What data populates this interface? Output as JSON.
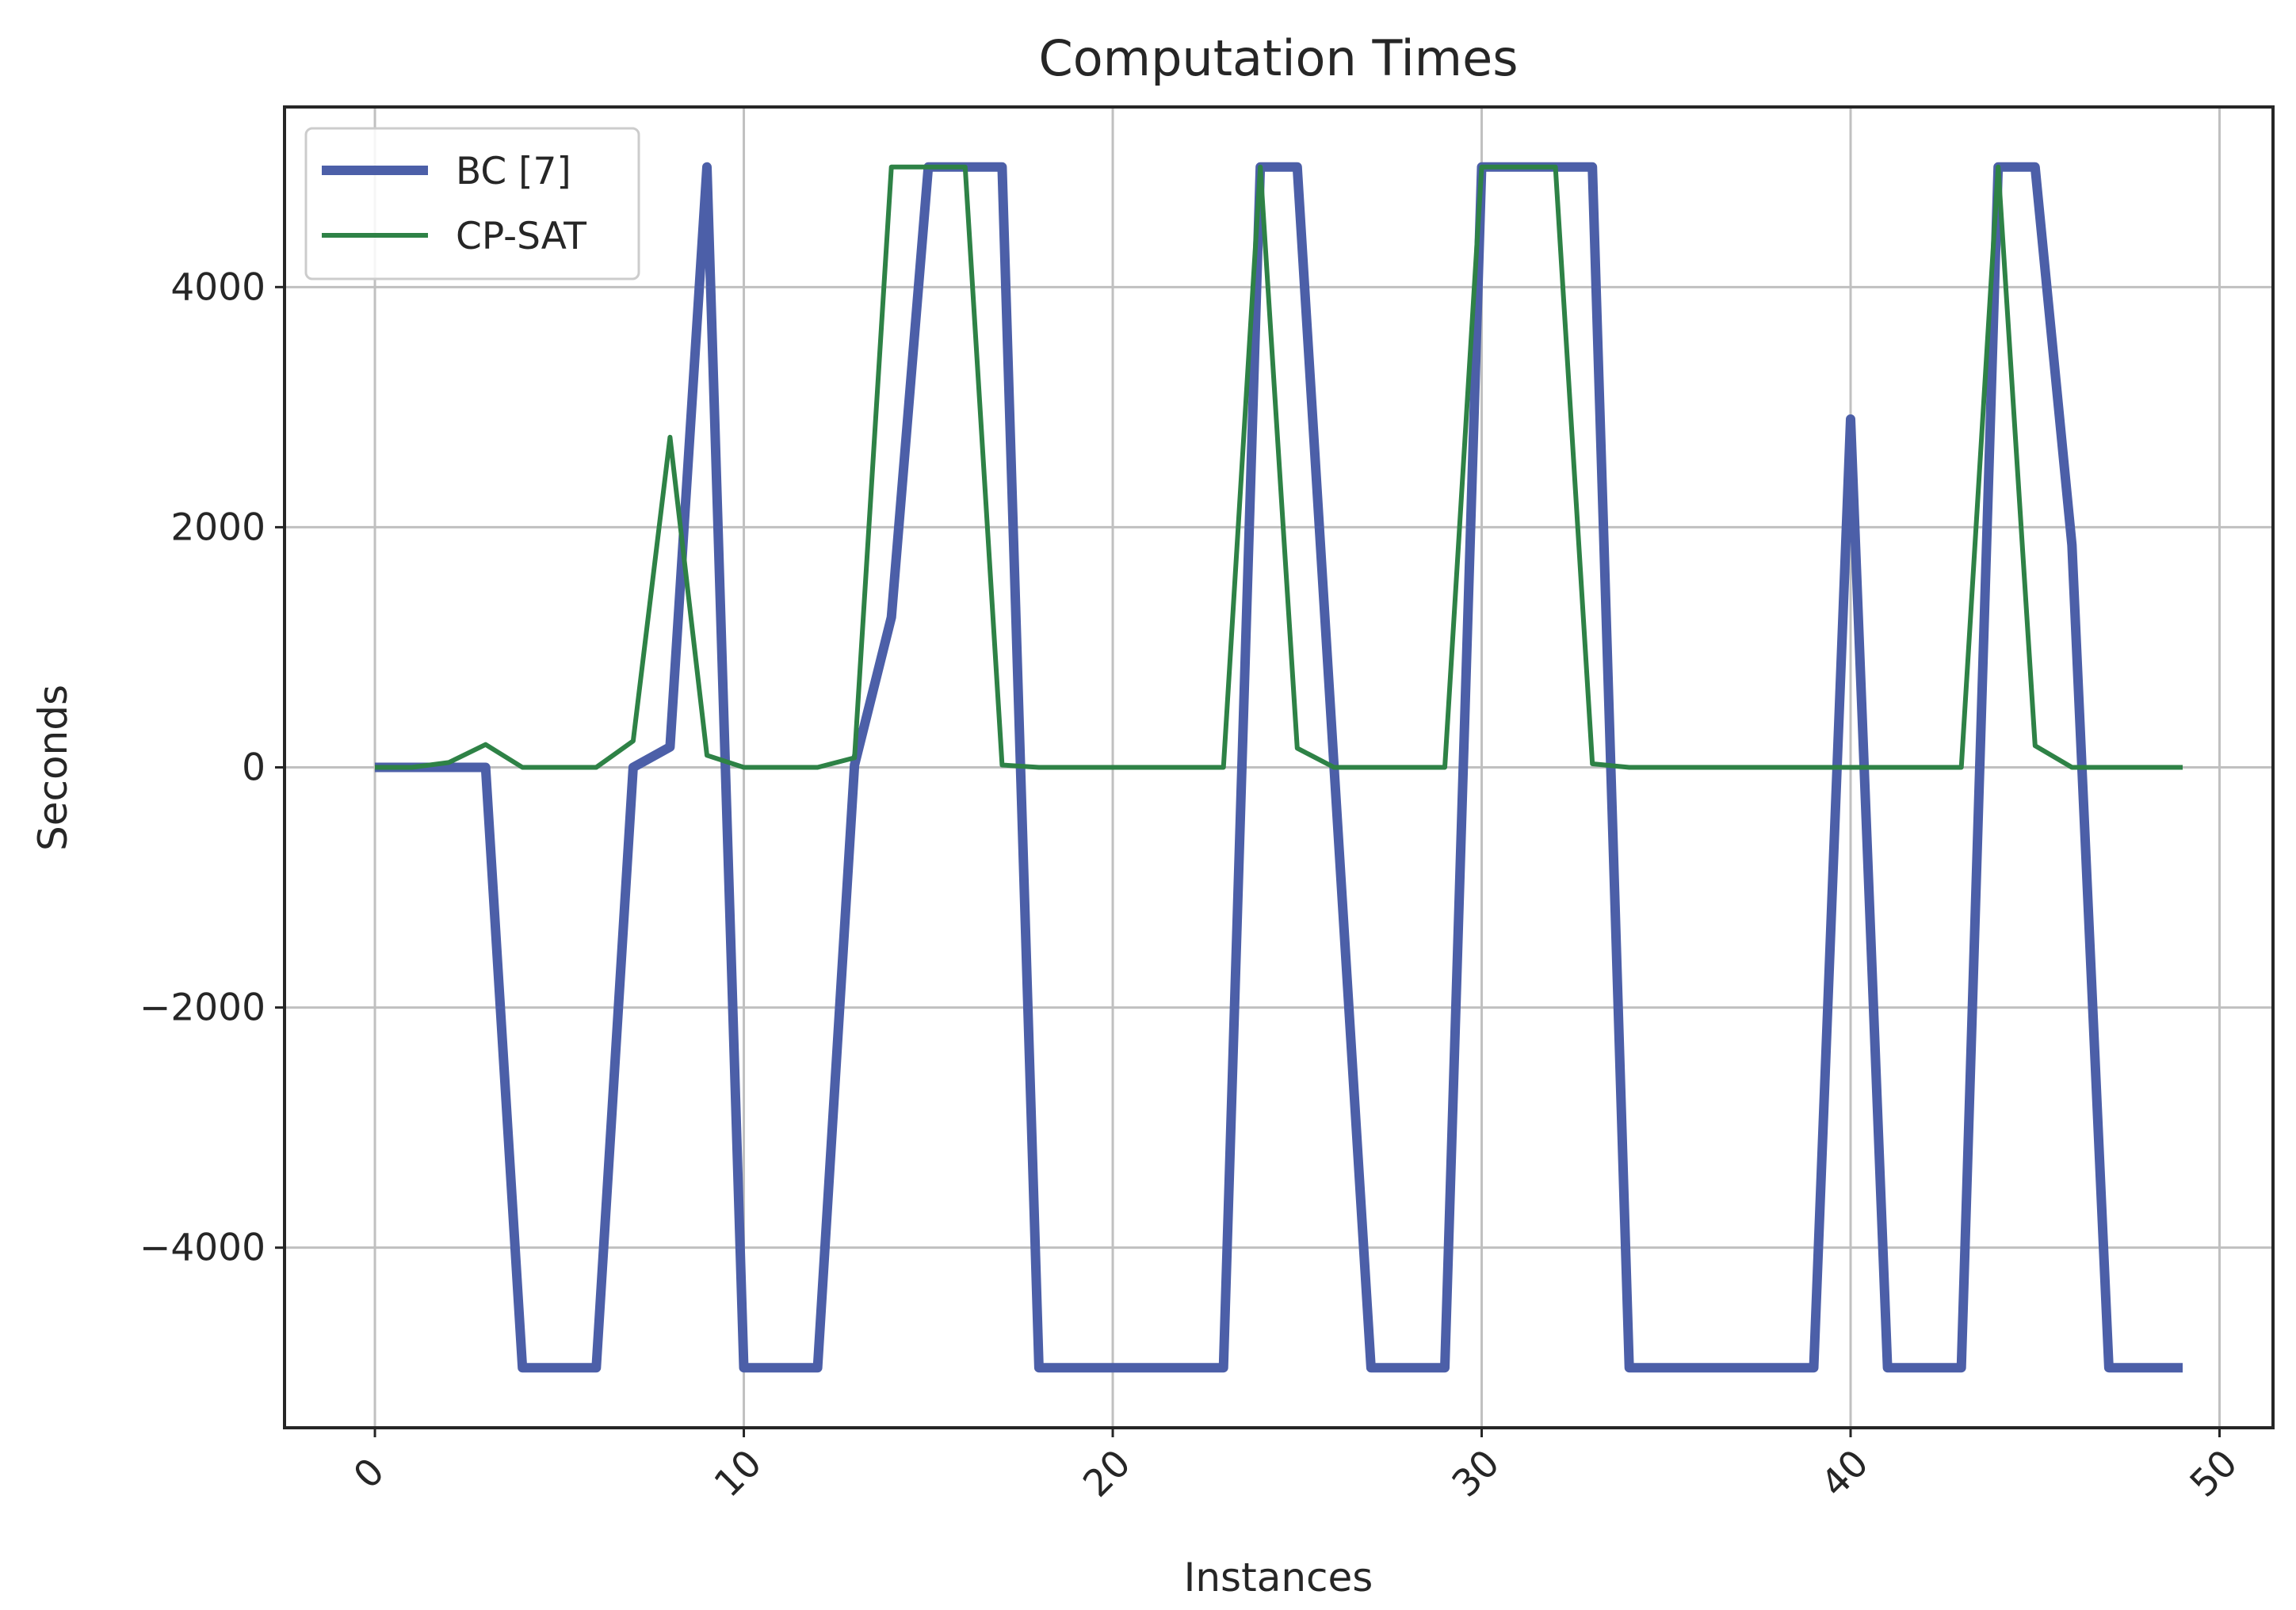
{
  "chart_data": {
    "type": "line",
    "title": "Computation Times",
    "xlabel": "Instances",
    "ylabel": "Seconds",
    "xlim": [
      -2.45,
      51.45
    ],
    "ylim": [
      -5500,
      5500
    ],
    "xticks": [
      0,
      10,
      20,
      30,
      40,
      50
    ],
    "yticks": [
      -4000,
      -2000,
      0,
      2000,
      4000
    ],
    "xtick_labels": [
      "0",
      "10",
      "20",
      "30",
      "40",
      "50"
    ],
    "ytick_labels": [
      "−4000",
      "−2000",
      "0",
      "2000",
      "4000"
    ],
    "grid": true,
    "legend_position": "top-left",
    "x": [
      0,
      1,
      2,
      3,
      4,
      5,
      6,
      7,
      8,
      9,
      10,
      11,
      12,
      13,
      14,
      15,
      16,
      17,
      18,
      19,
      20,
      21,
      22,
      23,
      24,
      25,
      26,
      27,
      28,
      29,
      30,
      31,
      32,
      33,
      34,
      35,
      36,
      37,
      38,
      39,
      40,
      41,
      42,
      43,
      44,
      45,
      46,
      47,
      48,
      49
    ],
    "series": [
      {
        "name": "BC [7]",
        "color": "#4c5fa8",
        "line_width": 12,
        "values": [
          0,
          0,
          0,
          0,
          -5000,
          -5000,
          -5000,
          0,
          170,
          5000,
          -5000,
          -5000,
          -5000,
          20,
          1250,
          5000,
          5000,
          5000,
          -5000,
          -5000,
          -5000,
          -5000,
          -5000,
          -5000,
          5000,
          5000,
          0,
          -5000,
          -5000,
          -5000,
          5000,
          5000,
          5000,
          5000,
          -5000,
          -5000,
          -5000,
          -5000,
          -5000,
          -5000,
          2900,
          -5000,
          -5000,
          -5000,
          5000,
          5000,
          1850,
          -5000,
          -5000,
          -5000
        ]
      },
      {
        "name": "CP-SAT",
        "color": "#2e8246",
        "line_width": 6,
        "values": [
          0,
          0,
          40,
          190,
          0,
          0,
          0,
          220,
          2750,
          100,
          0,
          0,
          0,
          80,
          5000,
          5000,
          5000,
          20,
          0,
          0,
          0,
          0,
          0,
          0,
          5000,
          160,
          0,
          0,
          0,
          0,
          5000,
          5000,
          5000,
          30,
          0,
          0,
          0,
          0,
          0,
          0,
          0,
          0,
          0,
          0,
          5000,
          180,
          0,
          0,
          0,
          0
        ]
      }
    ]
  }
}
